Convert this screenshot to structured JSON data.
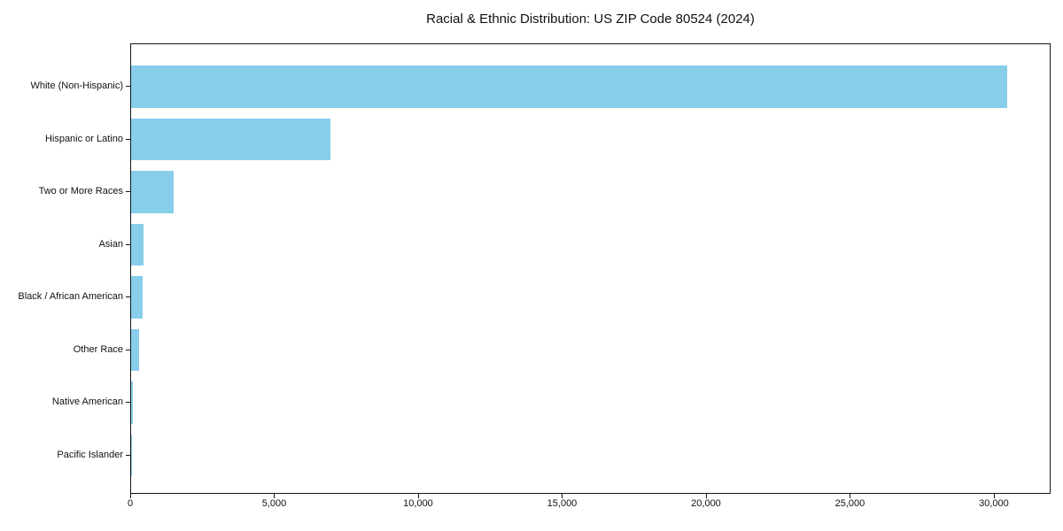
{
  "chart_data": {
    "type": "bar",
    "orientation": "horizontal",
    "title": "Racial & Ethnic Distribution: US ZIP Code 80524 (2024)",
    "categories": [
      "White (Non-Hispanic)",
      "Hispanic or Latino",
      "Two or More Races",
      "Asian",
      "Black / African American",
      "Other Race",
      "Native American",
      "Pacific Islander"
    ],
    "values": [
      30430,
      6930,
      1480,
      440,
      410,
      280,
      50,
      15
    ],
    "xlabel": "",
    "ylabel": "",
    "xlim": [
      0,
      31970
    ],
    "x_ticks": [
      0,
      5000,
      10000,
      15000,
      20000,
      25000,
      30000
    ],
    "x_tick_labels": [
      "0",
      "5,000",
      "10,000",
      "15,000",
      "20,000",
      "25,000",
      "30,000"
    ],
    "grid": false,
    "legend": null,
    "bar_color": "#87CEEB",
    "background_color": "#ffffff",
    "spine_color": "#141414"
  }
}
